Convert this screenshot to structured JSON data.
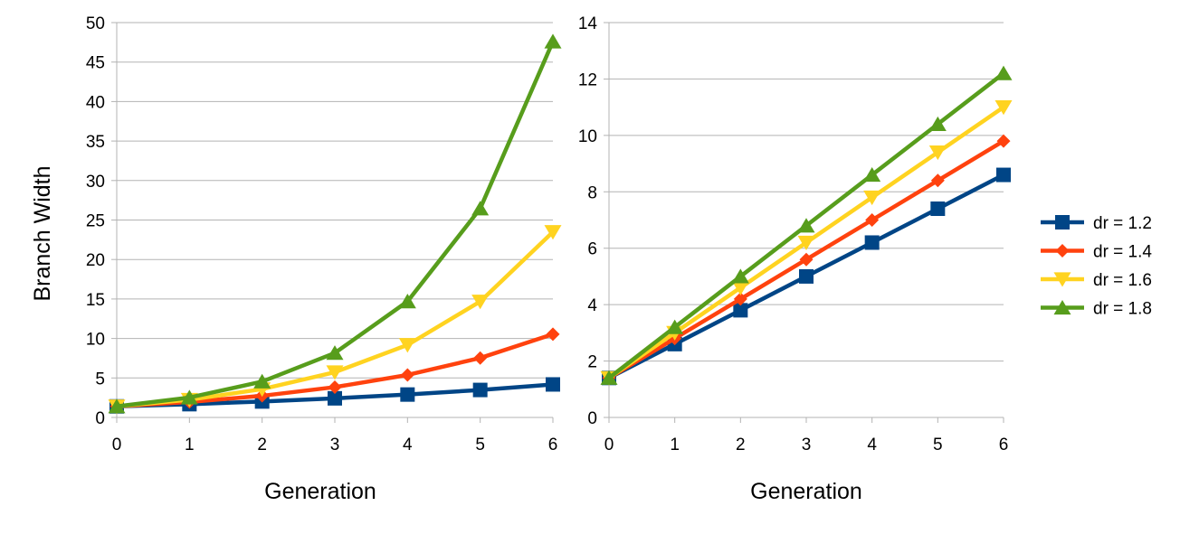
{
  "chart_data": [
    {
      "type": "line",
      "title": "",
      "xlabel": "Generation",
      "ylabel": "Branch Width",
      "x": [
        0,
        1,
        2,
        3,
        4,
        5,
        6
      ],
      "xlim": [
        0,
        6
      ],
      "ylim": [
        0,
        50
      ],
      "ytick_step": 5,
      "grid": true,
      "series": [
        {
          "name": "dr = 1.2",
          "color": "#004586",
          "marker": "square",
          "values": [
            1.4,
            1.68,
            2.02,
            2.42,
            2.9,
            3.48,
            4.18
          ]
        },
        {
          "name": "dr = 1.4",
          "color": "#ff420e",
          "marker": "diamond",
          "values": [
            1.4,
            1.96,
            2.74,
            3.84,
            5.38,
            7.53,
            10.54
          ]
        },
        {
          "name": "dr = 1.6",
          "color": "#ffd320",
          "marker": "triangle-down",
          "values": [
            1.4,
            2.24,
            3.58,
            5.73,
            9.18,
            14.68,
            23.49
          ]
        },
        {
          "name": "dr = 1.8",
          "color": "#579d1c",
          "marker": "triangle-up",
          "values": [
            1.4,
            2.52,
            4.54,
            8.16,
            14.69,
            26.45,
            47.6
          ]
        }
      ]
    },
    {
      "type": "line",
      "title": "",
      "xlabel": "Generation",
      "ylabel": "",
      "x": [
        0,
        1,
        2,
        3,
        4,
        5,
        6
      ],
      "xlim": [
        0,
        6
      ],
      "ylim": [
        0,
        14
      ],
      "ytick_step": 2,
      "grid": true,
      "legend": "right",
      "series": [
        {
          "name": "dr = 1.2",
          "color": "#004586",
          "marker": "square",
          "values": [
            1.4,
            2.6,
            3.8,
            5.0,
            6.2,
            7.4,
            8.6
          ]
        },
        {
          "name": "dr = 1.4",
          "color": "#ff420e",
          "marker": "diamond",
          "values": [
            1.4,
            2.8,
            4.2,
            5.6,
            7.0,
            8.4,
            9.8
          ]
        },
        {
          "name": "dr = 1.6",
          "color": "#ffd320",
          "marker": "triangle-down",
          "values": [
            1.4,
            3.0,
            4.6,
            6.2,
            7.8,
            9.4,
            11.0
          ]
        },
        {
          "name": "dr = 1.8",
          "color": "#579d1c",
          "marker": "triangle-up",
          "values": [
            1.4,
            3.2,
            5.0,
            6.8,
            8.6,
            10.4,
            12.2
          ]
        }
      ]
    }
  ]
}
